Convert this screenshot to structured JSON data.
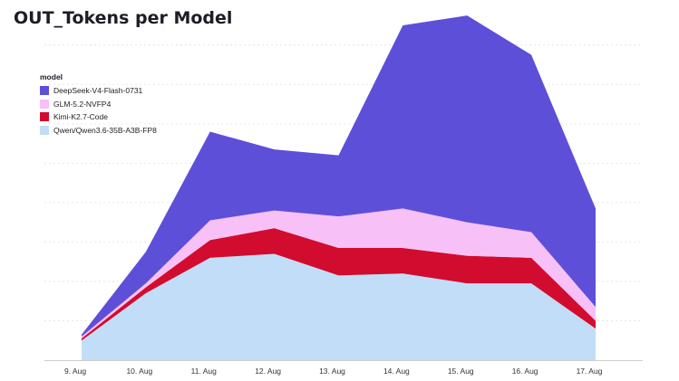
{
  "title": "OUT_Tokens per Model",
  "chart_data": {
    "type": "area",
    "stacked": true,
    "title": "OUT_Tokens per Model",
    "xlabel": "",
    "ylabel": "",
    "categories": [
      "9. Aug",
      "10. Aug",
      "11. Aug",
      "12. Aug",
      "13. Aug",
      "14. Aug",
      "15. Aug",
      "16. Aug",
      "17. Aug"
    ],
    "ylim": [
      0,
      8.5
    ],
    "grid": true,
    "legend_title": "model",
    "legend_position": "top-left",
    "series": [
      {
        "name": "Qwen/Qwen3.6-35B-A3B-FP8",
        "color": "#c2ddf7",
        "values": [
          0.5,
          1.7,
          2.6,
          2.7,
          2.15,
          2.2,
          1.95,
          1.95,
          0.8
        ]
      },
      {
        "name": "Kimi-K2.7-Code",
        "color": "#d10c2f",
        "values": [
          0.05,
          0.15,
          0.45,
          0.65,
          0.7,
          0.65,
          0.7,
          0.65,
          0.2
        ]
      },
      {
        "name": "GLM-5.2-NVFP4",
        "color": "#f7c0f7",
        "values": [
          0.05,
          0.1,
          0.5,
          0.45,
          0.8,
          1.0,
          0.85,
          0.65,
          0.35
        ]
      },
      {
        "name": "DeepSeek-V4-Flash-0731",
        "color": "#5e4fd9",
        "values": [
          0.05,
          0.8,
          2.25,
          1.55,
          1.55,
          4.65,
          5.25,
          4.5,
          2.5
        ]
      }
    ]
  }
}
